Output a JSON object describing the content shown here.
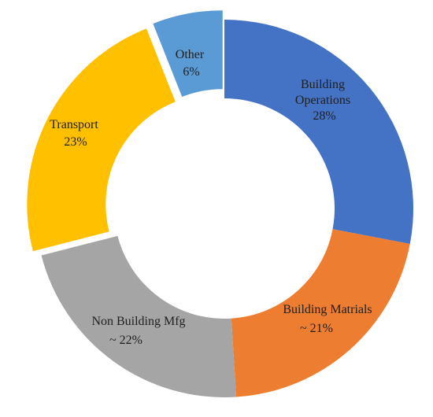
{
  "chart_data": {
    "type": "pie",
    "variant": "donut",
    "title": "",
    "slices": [
      {
        "label": "Building Operations",
        "value": 28,
        "value_text": "28%",
        "color": "#4472C4",
        "exploded": false
      },
      {
        "label": "Building Matrials",
        "value": 21,
        "value_text": "~ 21%",
        "color": "#ED7D31",
        "exploded": false
      },
      {
        "label": "Non Building Mfg",
        "value": 22,
        "value_text": "~ 22%",
        "color": "#A5A5A5",
        "exploded": false
      },
      {
        "label": "Transport",
        "value": 23,
        "value_text": "23%",
        "color": "#FFC000",
        "exploded": true
      },
      {
        "label": "Other",
        "value": 6,
        "value_text": "6%",
        "color": "#5B9BD5",
        "exploded": true
      }
    ],
    "start_angle_deg": 0,
    "direction": "clockwise",
    "legend": "none"
  }
}
